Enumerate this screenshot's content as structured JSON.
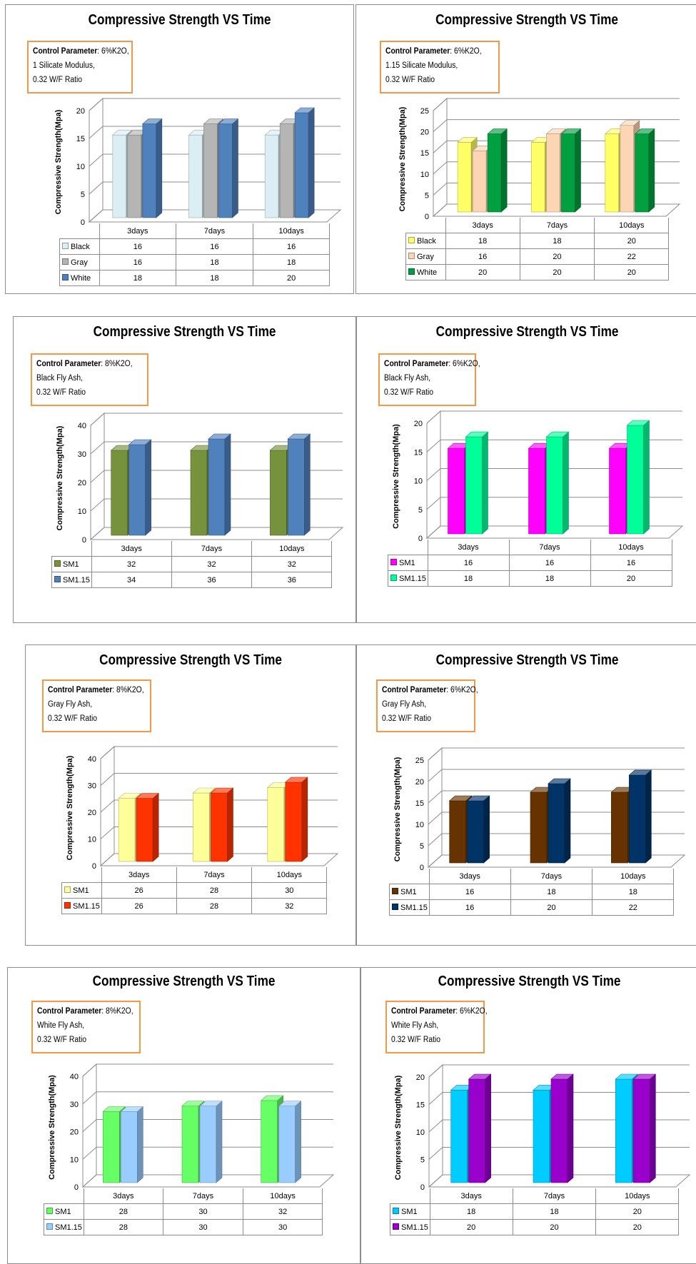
{
  "panels": [
    {
      "title": "Compressive Strength VS Time",
      "param": {
        "label": "Control Parameter",
        "line1": ": 6%K2O,",
        "line2": "1 Silicate Modulus,",
        "line3": "0.32 W/F Ratio"
      },
      "chart_data": {
        "type": "bar",
        "ylabel": "Compressive Strength(Mpa)",
        "ylim": [
          0,
          20
        ],
        "yticks": [
          0,
          5,
          10,
          15,
          20
        ],
        "categories": [
          "3days",
          "7days",
          "10days"
        ],
        "series": [
          {
            "name": "Black",
            "values": [
              16,
              16,
              16
            ],
            "color": "#daeef3"
          },
          {
            "name": "Gray",
            "values": [
              16,
              18,
              18
            ],
            "color": "#b5b5b5"
          },
          {
            "name": "White",
            "values": [
              18,
              18,
              20
            ],
            "color": "#4f81bd"
          }
        ]
      }
    },
    {
      "title": "Compressive Strength VS Time",
      "param": {
        "label": "Control Parameter",
        "line1": ": 6%K2O,",
        "line2": "1.15 Silicate Modulus,",
        "line3": "0.32 W/F Ratio"
      },
      "chart_data": {
        "type": "bar",
        "ylabel": "Compressive Strength(Mpa)",
        "ylim": [
          0,
          25
        ],
        "yticks": [
          0,
          5,
          10,
          15,
          20,
          25
        ],
        "categories": [
          "3days",
          "7days",
          "10days"
        ],
        "series": [
          {
            "name": "Black",
            "values": [
              18,
              18,
              20
            ],
            "color": "#ffff66"
          },
          {
            "name": "Gray",
            "values": [
              16,
              20,
              22
            ],
            "color": "#fcd5b4"
          },
          {
            "name": "White",
            "values": [
              20,
              20,
              20
            ],
            "color": "#00a040"
          }
        ]
      }
    },
    {
      "title": "Compressive Strength VS Time",
      "param": {
        "label": "Control Parameter",
        "line1": ": 8%K2O,",
        "line2": "Black Fly Ash,",
        "line3": "0.32 W/F Ratio"
      },
      "chart_data": {
        "type": "bar",
        "ylabel": "Compressive Strength(Mpa)",
        "ylim": [
          0,
          40
        ],
        "yticks": [
          0,
          10,
          20,
          30,
          40
        ],
        "categories": [
          "3days",
          "7days",
          "10days"
        ],
        "series": [
          {
            "name": "SM1",
            "values": [
              32,
              32,
              32
            ],
            "color": "#76923c"
          },
          {
            "name": "SM1.15",
            "values": [
              34,
              36,
              36
            ],
            "color": "#4f81bd"
          }
        ]
      }
    },
    {
      "title": "Compressive Strength VS Time",
      "param": {
        "label": "Control Parameter",
        "line1": ": 6%K2O,",
        "line2": "Black Fly Ash,",
        "line3": "0.32 W/F Ratio"
      },
      "chart_data": {
        "type": "bar",
        "ylabel": "Compressive Strength(Mpa)",
        "ylim": [
          0,
          20
        ],
        "yticks": [
          0,
          5,
          10,
          15,
          20
        ],
        "categories": [
          "3days",
          "7days",
          "10days"
        ],
        "series": [
          {
            "name": "SM1",
            "values": [
              16,
              16,
              16
            ],
            "color": "#ff00ff"
          },
          {
            "name": "SM1.15",
            "values": [
              18,
              18,
              20
            ],
            "color": "#00ff99"
          }
        ]
      }
    },
    {
      "title": "Compressive Strength VS Time",
      "param": {
        "label": "Control Parameter",
        "line1": ": 8%K2O,",
        "line2": "Gray Fly Ash,",
        "line3": "0.32 W/F Ratio"
      },
      "chart_data": {
        "type": "bar",
        "ylabel": "Compressive Strength(Mpa)",
        "ylim": [
          0,
          40
        ],
        "yticks": [
          0,
          10,
          20,
          30,
          40
        ],
        "categories": [
          "3days",
          "7days",
          "10days"
        ],
        "series": [
          {
            "name": "SM1",
            "values": [
              26,
              28,
              30
            ],
            "color": "#ffff99"
          },
          {
            "name": "SM1.15",
            "values": [
              26,
              28,
              32
            ],
            "color": "#ff3300"
          }
        ]
      }
    },
    {
      "title": "Compressive Strength VS Time",
      "param": {
        "label": "Control Parameter",
        "line1": ": 6%K2O,",
        "line2": "Gray Fly Ash,",
        "line3": "0.32 W/F Ratio"
      },
      "chart_data": {
        "type": "bar",
        "ylabel": "Compressive Strength(Mpa)",
        "ylim": [
          0,
          25
        ],
        "yticks": [
          0,
          5,
          10,
          15,
          20,
          25
        ],
        "categories": [
          "3days",
          "7days",
          "10days"
        ],
        "series": [
          {
            "name": "SM1",
            "values": [
              16,
              18,
              18
            ],
            "color": "#663300"
          },
          {
            "name": "SM1.15",
            "values": [
              16,
              20,
              22
            ],
            "color": "#003366"
          }
        ]
      }
    },
    {
      "title": "Compressive Strength VS Time",
      "param": {
        "label": "Control Parameter",
        "line1": ": 8%K2O,",
        "line2": "White Fly Ash,",
        "line3": "0.32 W/F Ratio"
      },
      "chart_data": {
        "type": "bar",
        "ylabel": "Compressive Strength(Mpa)",
        "ylim": [
          0,
          40
        ],
        "yticks": [
          0,
          10,
          20,
          30,
          40
        ],
        "categories": [
          "3days",
          "7days",
          "10days"
        ],
        "series": [
          {
            "name": "SM1",
            "values": [
              28,
              30,
              32
            ],
            "color": "#66ff66"
          },
          {
            "name": "SM1.15",
            "values": [
              28,
              30,
              30
            ],
            "color": "#99ccff"
          }
        ]
      }
    },
    {
      "title": "Compressive Strength VS Time",
      "param": {
        "label": "Control Parameter",
        "line1": ": 6%K2O,",
        "line2": "White Fly Ash,",
        "line3": "0.32 W/F Ratio"
      },
      "chart_data": {
        "type": "bar",
        "ylabel": "Compressive Strength(Mpa)",
        "ylim": [
          0,
          20
        ],
        "yticks": [
          0,
          5,
          10,
          15,
          20
        ],
        "categories": [
          "3days",
          "7days",
          "10days"
        ],
        "series": [
          {
            "name": "SM1",
            "values": [
              18,
              18,
              20
            ],
            "color": "#00ccff"
          },
          {
            "name": "SM1.15",
            "values": [
              20,
              20,
              20
            ],
            "color": "#9900cc"
          }
        ]
      }
    }
  ]
}
